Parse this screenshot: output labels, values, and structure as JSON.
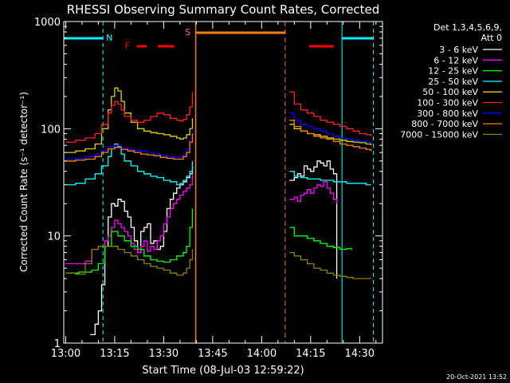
{
  "chart_data": {
    "type": "line",
    "title": "RHESSI Observing Summary Count Rates, Corrected",
    "xlabel": "Start Time (08-Jul-03 12:59:22)",
    "ylabel": "Corrected Count Rate (s⁻¹ detector⁻¹)",
    "yscale": "log",
    "ylim": [
      1,
      1000
    ],
    "y_ticks": [
      {
        "value": 1,
        "label": "1"
      },
      {
        "value": 10,
        "label": "10"
      },
      {
        "value": 100,
        "label": "100"
      },
      {
        "value": 1000,
        "label": "1000"
      }
    ],
    "xlim_minutes_after_1300": [
      -0.6,
      97
    ],
    "x_ticks": [
      {
        "minute": 0,
        "label": "13:00"
      },
      {
        "minute": 15,
        "label": "13:15"
      },
      {
        "minute": 30,
        "label": "13:30"
      },
      {
        "minute": 45,
        "label": "13:45"
      },
      {
        "minute": 60,
        "label": "14:00"
      },
      {
        "minute": 75,
        "label": "14:15"
      },
      {
        "minute": 90,
        "label": "14:30"
      }
    ],
    "legend_header": [
      "Det 1,3,4,5,6,9,",
      "Att 0"
    ],
    "legend_placement": "right",
    "series": [
      {
        "name": "3 - 6 keV",
        "color": "#ffffff",
        "segments": [
          {
            "x": [
              7.5,
              9,
              10,
              11,
              12,
              13,
              14,
              15,
              16,
              17,
              18,
              19,
              20,
              21,
              22,
              23,
              24,
              25,
              26,
              27,
              28,
              29,
              30,
              31,
              32,
              33,
              34,
              35,
              36,
              37,
              38,
              38.8
            ],
            "y": [
              1.2,
              1.5,
              2.0,
              3.5,
              8,
              15,
              20,
              19,
              22,
              21,
              17,
              15,
              12,
              9,
              7,
              11,
              12,
              13,
              8.5,
              9,
              7.5,
              8,
              11,
              18,
              22,
              25,
              28,
              30,
              32,
              35,
              38,
              45
            ]
          },
          {
            "x": [
              68.5,
              70,
              71,
              72,
              73,
              74,
              75,
              76,
              77,
              78,
              79,
              80,
              81,
              82,
              83
            ],
            "y": [
              33,
              35,
              38,
              36,
              45,
              42,
              40,
              44,
              50,
              48,
              45,
              50,
              42,
              38,
              4
            ]
          }
        ]
      },
      {
        "name": "6 - 12 keV",
        "color": "#ff00ff",
        "segments": [
          {
            "x": [
              0,
              3,
              6,
              8,
              10,
              12,
              13,
              14,
              15,
              16,
              17,
              18,
              19,
              20,
              21,
              22,
              23,
              24,
              25,
              26,
              27,
              28,
              29,
              30,
              31,
              32,
              33,
              34,
              35,
              36,
              37,
              38,
              38.8
            ],
            "y": [
              5.5,
              5.5,
              5.8,
              7.5,
              8,
              9,
              10,
              12,
              14,
              13,
              12,
              11,
              10,
              8.5,
              7.5,
              7,
              8,
              9,
              7.2,
              8,
              7.5,
              9,
              10,
              13,
              15,
              18,
              20,
              22,
              24,
              26,
              28,
              30,
              38
            ]
          },
          {
            "x": [
              68.5,
              70,
              71,
              72,
              73,
              74,
              75,
              76,
              77,
              78,
              79,
              80,
              81,
              82,
              83
            ],
            "y": [
              22,
              23,
              21,
              24,
              25,
              27,
              25,
              28,
              30,
              29,
              32,
              28,
              25,
              22,
              20
            ]
          }
        ]
      },
      {
        "name": "12 - 25 keV",
        "color": "#00ff00",
        "segments": [
          {
            "x": [
              0,
              4,
              8,
              10,
              12,
              14,
              15,
              16,
              18,
              20,
              22,
              24,
              26,
              28,
              30,
              32,
              34,
              36,
              37,
              38,
              38.8
            ],
            "y": [
              4.5,
              4.6,
              4.8,
              5.5,
              8,
              11,
              11,
              10,
              9,
              8,
              7.5,
              6.5,
              6,
              5.8,
              5.7,
              6,
              6.5,
              7,
              8,
              12,
              18
            ]
          },
          {
            "x": [
              68.5,
              70,
              72,
              74,
              76,
              78,
              80,
              82,
              84,
              86,
              87.5
            ],
            "y": [
              12,
              10,
              10,
              9.5,
              9,
              8.5,
              8,
              7.8,
              7.5,
              7.6,
              7.4
            ]
          }
        ]
      },
      {
        "name": "25 - 50 keV",
        "color": "#00ffff",
        "segments": [
          {
            "x": [
              0,
              3,
              6,
              9,
              11,
              13,
              14,
              15,
              16,
              17,
              18,
              20,
              22,
              24,
              26,
              28,
              30,
              32,
              34,
              35,
              36,
              37,
              38,
              38.8
            ],
            "y": [
              30,
              31,
              34,
              38,
              45,
              55,
              65,
              72,
              68,
              58,
              50,
              45,
              40,
              38,
              36,
              35,
              33,
              32,
              30,
              31,
              33,
              36,
              40,
              50
            ]
          },
          {
            "x": [
              68.5,
              70,
              72,
              74,
              76,
              78,
              80,
              82,
              84,
              86,
              88,
              90,
              92,
              93.5
            ],
            "y": [
              40,
              36,
              35,
              34,
              34,
              33,
              33,
              32,
              32,
              31,
              31,
              31,
              30,
              30
            ]
          }
        ]
      },
      {
        "name": "50 - 100 keV",
        "color": "#e0d000",
        "segments": [
          {
            "x": [
              0,
              3,
              6,
              9,
              11,
              13,
              14,
              15,
              16,
              17,
              18,
              20,
              22,
              24,
              26,
              28,
              30,
              32,
              34,
              35,
              36,
              37,
              38,
              38.8
            ],
            "y": [
              60,
              62,
              65,
              72,
              100,
              150,
              200,
              240,
              225,
              180,
              140,
              115,
              100,
              95,
              92,
              90,
              88,
              85,
              82,
              80,
              82,
              88,
              100,
              125
            ]
          },
          {
            "x": [
              68.5,
              70,
              72,
              74,
              76,
              78,
              80,
              82,
              84,
              86,
              88,
              90,
              92,
              93.5
            ],
            "y": [
              110,
              100,
              95,
              90,
              88,
              85,
              82,
              80,
              78,
              76,
              75,
              74,
              72,
              70
            ]
          }
        ]
      },
      {
        "name": "100 - 300 keV",
        "color": "#ff2020",
        "segments": [
          {
            "x": [
              0,
              3,
              6,
              9,
              11,
              13,
              14,
              15,
              16,
              17,
              18,
              20,
              22,
              24,
              26,
              28,
              30,
              32,
              34,
              35,
              36,
              37,
              38,
              38.8
            ],
            "y": [
              75,
              78,
              82,
              90,
              110,
              140,
              165,
              180,
              170,
              150,
              130,
              120,
              115,
              120,
              130,
              140,
              135,
              125,
              120,
              118,
              122,
              135,
              160,
              220
            ]
          },
          {
            "x": [
              68.5,
              70,
              72,
              74,
              76,
              78,
              80,
              82,
              84,
              86,
              88,
              90,
              92,
              93.5
            ],
            "y": [
              220,
              170,
              150,
              140,
              130,
              120,
              115,
              110,
              105,
              100,
              95,
              90,
              88,
              85
            ]
          }
        ]
      },
      {
        "name": "300 - 800 keV",
        "color": "#0000ff",
        "segments": [
          {
            "x": [
              0,
              3,
              6,
              9,
              11,
              13,
              15,
              17,
              19,
              21,
              23,
              25,
              27,
              29,
              31,
              33,
              35,
              36,
              37,
              38,
              38.8
            ],
            "y": [
              52,
              53,
              55,
              58,
              62,
              68,
              70,
              66,
              64,
              63,
              62,
              60,
              58,
              56,
              55,
              54,
              55,
              58,
              65,
              80,
              100
            ]
          },
          {
            "x": [
              68.5,
              70,
              72,
              74,
              76,
              78,
              80,
              82,
              84,
              86,
              88,
              90,
              92,
              93.5
            ],
            "y": [
              140,
              120,
              110,
              105,
              100,
              95,
              90,
              85,
              82,
              80,
              78,
              76,
              75,
              74
            ]
          }
        ]
      },
      {
        "name": "800 - 7000 keV",
        "color": "#ff8000",
        "segments": [
          {
            "x": [
              0,
              3,
              6,
              9,
              11,
              13,
              15,
              17,
              19,
              21,
              23,
              25,
              27,
              29,
              31,
              33,
              35,
              36,
              37,
              38,
              38.8
            ],
            "y": [
              50,
              51,
              52,
              55,
              60,
              65,
              67,
              64,
              62,
              60,
              58,
              57,
              56,
              54,
              53,
              52,
              52,
              55,
              60,
              75,
              90
            ]
          },
          {
            "x": [
              68.5,
              70,
              72,
              74,
              76,
              78,
              80,
              82,
              84,
              86,
              88,
              90,
              92,
              93.5
            ],
            "y": [
              120,
              105,
              95,
              90,
              85,
              82,
              80,
              76,
              72,
              70,
              68,
              66,
              64,
              62
            ]
          }
        ]
      },
      {
        "name": "7000 - 15000 keV",
        "color": "#8b8000",
        "segments": [
          {
            "x": [
              0,
              3,
              6,
              8,
              10,
              12,
              14,
              16,
              18,
              20,
              22,
              24,
              26,
              28,
              30,
              32,
              34,
              36,
              37,
              38,
              38.8
            ],
            "y": [
              4.5,
              4.4,
              5.5,
              7.5,
              8,
              8,
              8,
              7.5,
              7,
              6.5,
              6,
              5.5,
              5.2,
              5,
              4.8,
              4.5,
              4.3,
              4.5,
              5,
              6,
              7.5
            ]
          },
          {
            "x": [
              68.5,
              70,
              72,
              74,
              76,
              78,
              80,
              82,
              84,
              86,
              88,
              90,
              92,
              93.5
            ],
            "y": [
              7,
              6.5,
              6,
              5.5,
              5,
              4.8,
              4.5,
              4.3,
              4.2,
              4.1,
              4,
              4,
              4,
              4
            ]
          }
        ]
      }
    ],
    "annotations": {
      "night": {
        "label": "N",
        "color": "#00ffff",
        "markers_minutes": [
          11.4,
          94.2
        ],
        "bars": [
          [
            -0.6,
            11.4
          ],
          [
            84.6,
            94.2
          ]
        ],
        "line_minutes": 84.6
      },
      "flare": {
        "label": "F",
        "color": "#ff0000",
        "bars": [
          [
            21.8,
            24.8
          ],
          [
            28.2,
            33.2
          ],
          [
            74.5,
            82.0
          ]
        ]
      },
      "saa": {
        "label": "S",
        "color": "#ff8000",
        "markers_minutes": [
          39.8,
          67.2
        ],
        "bar": [
          39.8,
          67.2
        ]
      }
    }
  },
  "timestamp": "20-Oct-2021 13:52"
}
